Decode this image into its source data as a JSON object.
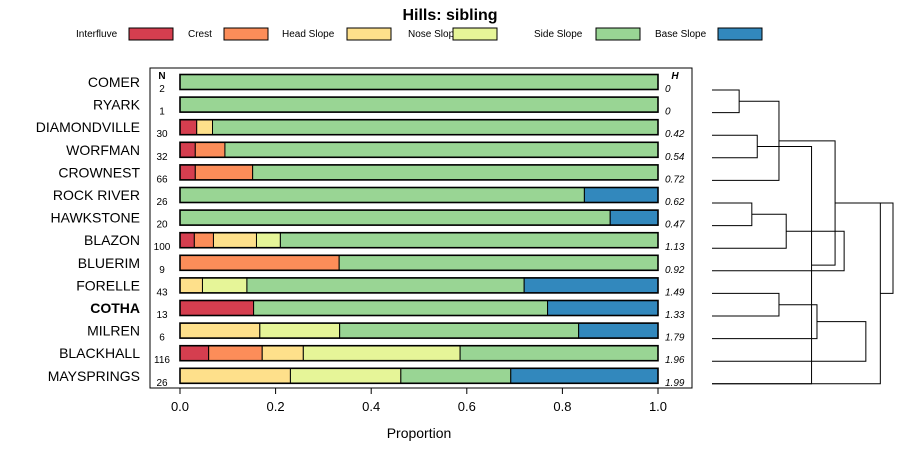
{
  "chart_data": {
    "type": "bar",
    "orientation": "horizontal-stacked",
    "title": "Hills: sibling",
    "xlabel": "Proportion",
    "xlim": [
      0,
      1
    ],
    "xticks": [
      "0.0",
      "0.2",
      "0.4",
      "0.6",
      "0.8",
      "1.0"
    ],
    "n_header": "N",
    "h_header": "H",
    "legend_position": "top",
    "series": [
      {
        "name": "Interfluve",
        "color": "#d53e4f"
      },
      {
        "name": "Crest",
        "color": "#fc8d59"
      },
      {
        "name": "Head Slope",
        "color": "#fee08b"
      },
      {
        "name": "Nose Slope",
        "color": "#e6f598"
      },
      {
        "name": "Side Slope",
        "color": "#99d594"
      },
      {
        "name": "Base Slope",
        "color": "#3288bd"
      }
    ],
    "rows": [
      {
        "label": "COMER",
        "n": "2",
        "h": "0",
        "bold": false,
        "values": [
          0,
          0,
          0,
          0,
          1.0,
          0
        ]
      },
      {
        "label": "RYARK",
        "n": "1",
        "h": "0",
        "bold": false,
        "values": [
          0,
          0,
          0,
          0,
          1.0,
          0
        ]
      },
      {
        "label": "DIAMONDVILLE",
        "n": "30",
        "h": "0.42",
        "bold": false,
        "values": [
          0.035,
          0,
          0.033,
          0,
          0.932,
          0
        ]
      },
      {
        "label": "WORFMAN",
        "n": "32",
        "h": "0.54",
        "bold": false,
        "values": [
          0.032,
          0.062,
          0,
          0,
          0.906,
          0
        ]
      },
      {
        "label": "CROWNEST",
        "n": "66",
        "h": "0.72",
        "bold": false,
        "values": [
          0.032,
          0.12,
          0,
          0,
          0.848,
          0
        ]
      },
      {
        "label": "ROCK RIVER",
        "n": "26",
        "h": "0.62",
        "bold": false,
        "values": [
          0,
          0,
          0,
          0,
          0.846,
          0.154
        ]
      },
      {
        "label": "HAWKSTONE",
        "n": "20",
        "h": "0.47",
        "bold": false,
        "values": [
          0,
          0,
          0,
          0,
          0.9,
          0.1
        ]
      },
      {
        "label": "BLAZON",
        "n": "100",
        "h": "1.13",
        "bold": false,
        "values": [
          0.03,
          0.04,
          0.09,
          0.05,
          0.79,
          0
        ]
      },
      {
        "label": "BLUERIM",
        "n": "9",
        "h": "0.92",
        "bold": false,
        "values": [
          0,
          0.333,
          0,
          0,
          0.667,
          0
        ]
      },
      {
        "label": "FORELLE",
        "n": "43",
        "h": "1.49",
        "bold": false,
        "values": [
          0,
          0,
          0.047,
          0.093,
          0.58,
          0.28
        ]
      },
      {
        "label": "COTHA",
        "n": "13",
        "h": "1.33",
        "bold": true,
        "values": [
          0.154,
          0,
          0,
          0,
          0.615,
          0.231
        ]
      },
      {
        "label": "MILREN",
        "n": "6",
        "h": "1.79",
        "bold": false,
        "values": [
          0,
          0,
          0.167,
          0.167,
          0.5,
          0.166
        ]
      },
      {
        "label": "BLACKHALL",
        "n": "116",
        "h": "1.96",
        "bold": false,
        "values": [
          0.06,
          0.112,
          0.086,
          0.328,
          0.414,
          0
        ]
      },
      {
        "label": "MAYSPRINGS",
        "n": "26",
        "h": "1.99",
        "bold": false,
        "values": [
          0,
          0,
          0.231,
          0.231,
          0.23,
          0.308
        ]
      }
    ],
    "dendrogram": {
      "merges": [
        [
          0,
          1,
          0.15
        ],
        [
          2,
          3,
          0.25
        ],
        [
          5,
          6,
          0.22
        ],
        [
          14,
          4,
          0.37
        ],
        [
          13,
          15,
          0.55
        ],
        [
          16,
          7,
          0.41
        ],
        [
          9,
          10,
          0.37
        ],
        [
          20,
          11,
          0.58
        ],
        [
          18,
          17,
          0.68
        ],
        [
          21,
          12,
          0.85
        ],
        [
          22,
          13,
          0.93
        ],
        [
          19,
          8,
          0.73
        ],
        [
          22,
          24,
          1.0
        ]
      ]
    }
  }
}
